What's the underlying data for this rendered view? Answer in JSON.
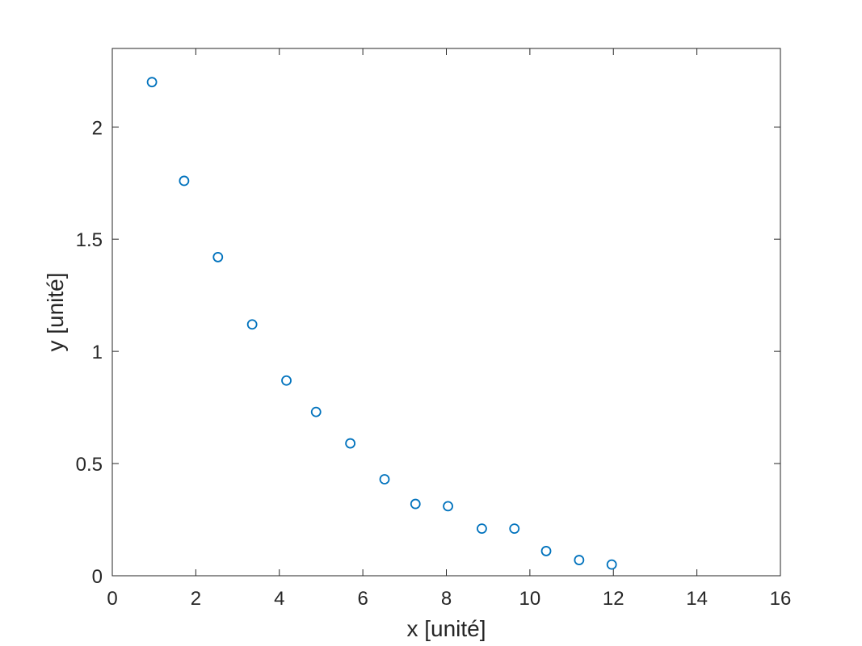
{
  "chart_data": {
    "type": "scatter",
    "title": "",
    "xlabel": "x [unité]",
    "ylabel": "y [unité]",
    "xlim": [
      0,
      16
    ],
    "ylim": [
      0,
      2.35
    ],
    "xticks": [
      0,
      2,
      4,
      6,
      8,
      10,
      12,
      14,
      16
    ],
    "xtick_labels": [
      "0",
      "2",
      "4",
      "6",
      "8",
      "10",
      "12",
      "14",
      "16"
    ],
    "yticks": [
      0,
      0.5,
      1,
      1.5,
      2
    ],
    "ytick_labels": [
      "0",
      "0.5",
      "1",
      "1.5",
      "2"
    ],
    "grid": false,
    "box": true,
    "marker": "circle-open",
    "series": [
      {
        "color": "#0072BD",
        "x": [
          0.95,
          1.72,
          2.53,
          3.35,
          4.17,
          4.88,
          5.7,
          6.52,
          7.26,
          8.04,
          8.85,
          9.63,
          10.39,
          11.18,
          11.96
        ],
        "y": [
          2.2,
          1.76,
          1.42,
          1.12,
          0.87,
          0.73,
          0.59,
          0.43,
          0.32,
          0.31,
          0.21,
          0.21,
          0.11,
          0.07,
          0.05
        ]
      }
    ]
  }
}
